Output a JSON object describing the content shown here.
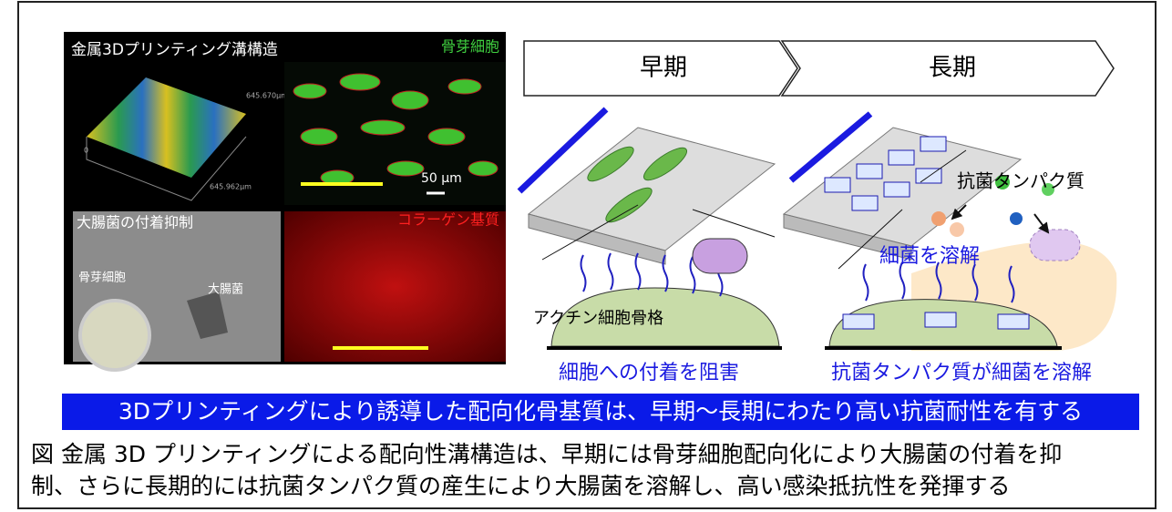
{
  "figure": {
    "panels": {
      "surface_title": "金属3Dプリンティング溝構造",
      "surface_axis_1": "645.670μm",
      "surface_axis_2": "645.962μm",
      "surface_axis_0": "0",
      "cells_title": "骨芽細胞",
      "scale_bar": "50 μm",
      "sem_title": "大腸菌の付着抑制",
      "sem_label_cell": "骨芽細胞",
      "sem_label_bacteria": "大腸菌",
      "collagen_title": "コラーゲン基質"
    },
    "stages": {
      "early": "早期",
      "late": "長期"
    },
    "schematic": {
      "actin": "アクチン細胞骨格",
      "antibacterial_protein": "抗菌タンパク質",
      "lysis": "細菌を溶解",
      "early_caption": "細胞への付着を阻害",
      "late_caption": "抗菌タンパク質が細菌を溶解"
    },
    "banner": "3Dプリンティングにより誘導した配向化骨基質は、早期〜長期にわたり高い抗菌耐性を有する",
    "caption": [
      "図 金属 3D プリンティングによる配向性溝構造は、早期には骨芽細胞配向化により大腸菌の付着を抑",
      "制、さらに長期的には抗菌タンパク質の産生により大腸菌を溶解し、高い感染抵抗性を発揮する"
    ]
  }
}
